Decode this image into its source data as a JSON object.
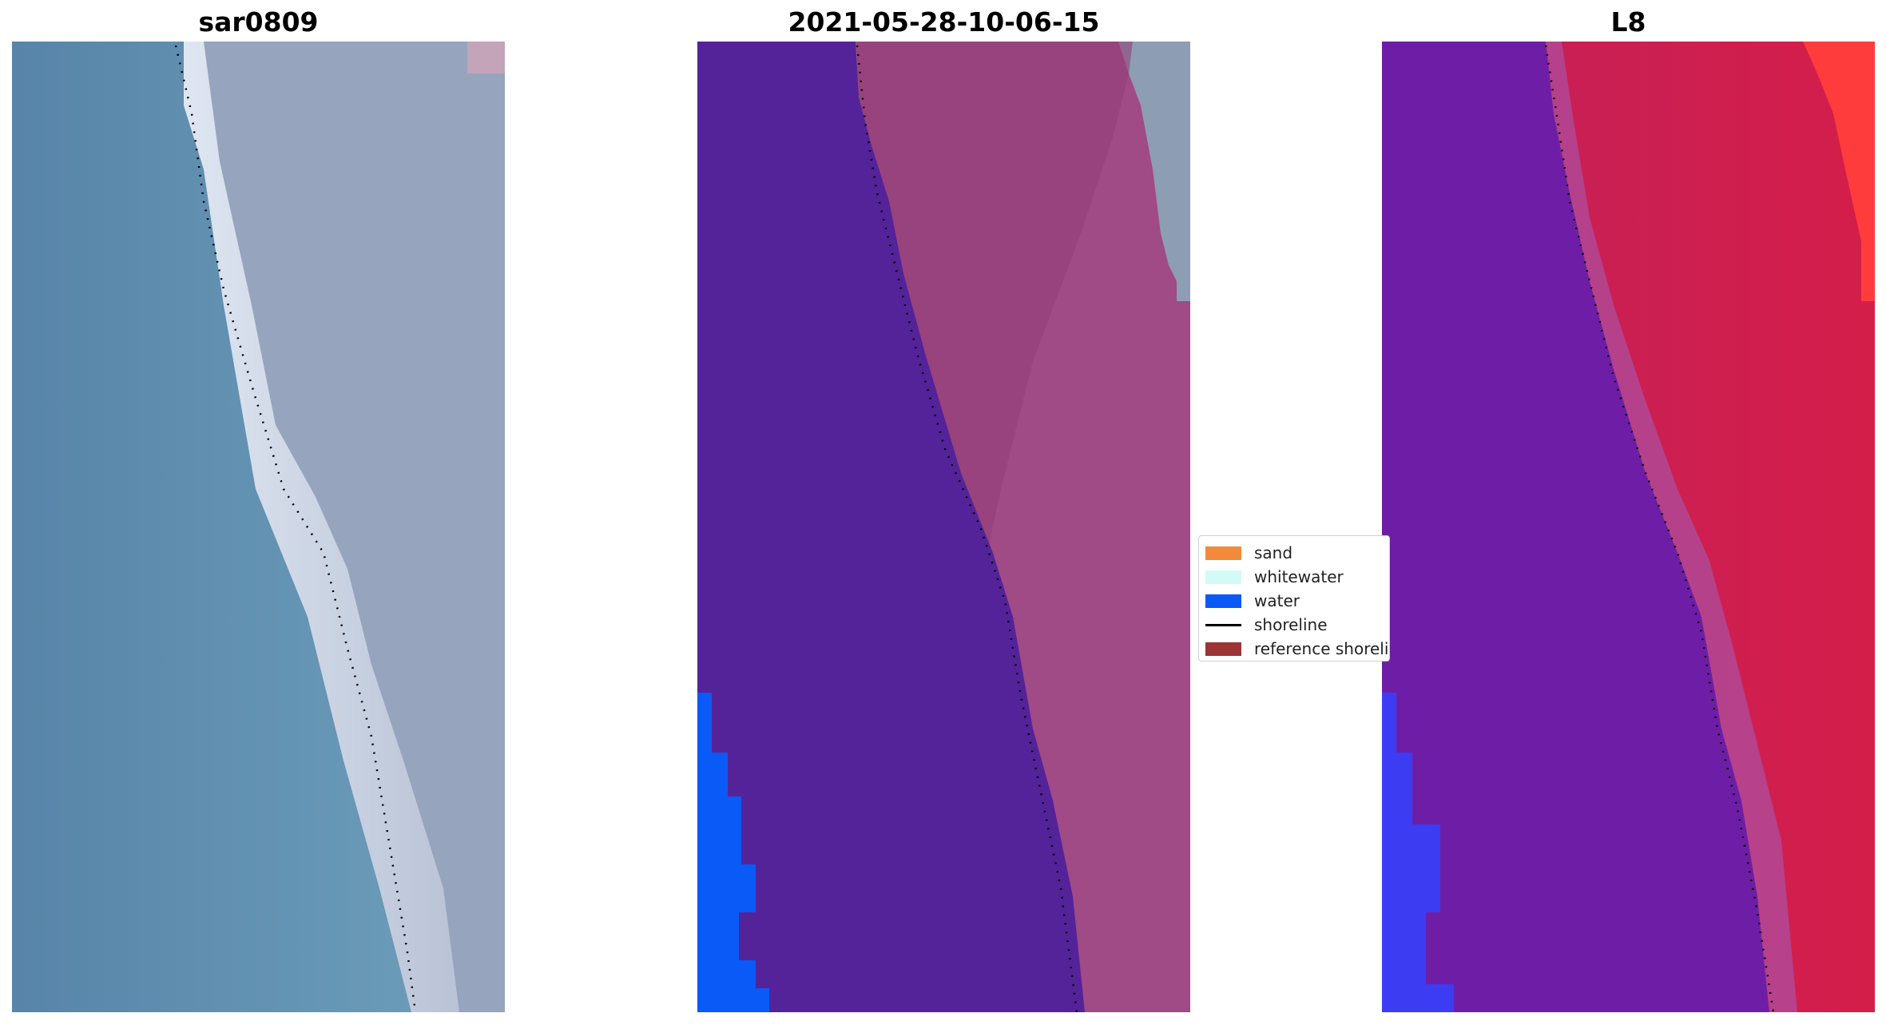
{
  "panels": [
    {
      "title": "sar0809"
    },
    {
      "title": "2021-05-28-10-06-15"
    },
    {
      "title": "L8"
    }
  ],
  "legend": {
    "items": [
      {
        "label": "sand",
        "color": "#f28a3a",
        "type": "patch"
      },
      {
        "label": "whitewater",
        "color": "#d2fbf8",
        "type": "patch"
      },
      {
        "label": "water",
        "color": "#0a5af8",
        "type": "patch"
      },
      {
        "label": "shoreline",
        "color": "#000000",
        "type": "line"
      },
      {
        "label": "reference shoreline",
        "color": "#9b3434",
        "type": "patch"
      }
    ]
  },
  "colors": {
    "rgb_sea": "#5a88aa",
    "rgb_beach": "#e4e8f2",
    "rgb_land": "#9aa8c0",
    "classified_sea": "#54239a",
    "classified_water": "#0a5af8",
    "classified_land": "#a04a86",
    "nir_sea": "#6e1ea6",
    "nir_water": "#3c3cf2",
    "nir_land": "#cc2052"
  }
}
